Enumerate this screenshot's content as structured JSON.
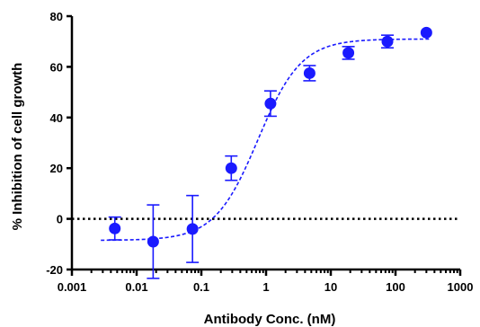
{
  "chart_data": {
    "type": "scatter",
    "title": "",
    "xlabel": "Antibody Conc. (nM)",
    "ylabel": "% Inhibition of cell growth",
    "x_scale": "log",
    "xlim": [
      0.001,
      1000
    ],
    "ylim": [
      -20,
      80
    ],
    "x_ticks": [
      0.001,
      0.01,
      0.1,
      1,
      10,
      100,
      1000
    ],
    "x_tick_labels": [
      "0.001",
      "0.01",
      "0.1",
      "1",
      "10",
      "100",
      "1000"
    ],
    "y_ticks": [
      -20,
      0,
      20,
      40,
      60,
      80
    ],
    "y_tick_labels": [
      "-20",
      "0",
      "20",
      "40",
      "60",
      "80"
    ],
    "grid": false,
    "legend": "none",
    "reference_line": {
      "y": 0,
      "style": "dotted",
      "color": "#000000"
    },
    "series": [
      {
        "color": "#1a1aff",
        "marker": "circle",
        "points": [
          {
            "x": 0.0046,
            "y": -3.8,
            "err": 4.5
          },
          {
            "x": 0.018,
            "y": -9.0,
            "err": 14.5
          },
          {
            "x": 0.073,
            "y": -4.0,
            "err": 13.2
          },
          {
            "x": 0.29,
            "y": 20.0,
            "err": 4.8
          },
          {
            "x": 1.17,
            "y": 45.5,
            "err": 5.0
          },
          {
            "x": 4.7,
            "y": 57.5,
            "err": 3.0
          },
          {
            "x": 18.7,
            "y": 65.5,
            "err": 2.5
          },
          {
            "x": 75,
            "y": 70.0,
            "err": 2.5
          },
          {
            "x": 300,
            "y": 73.5,
            "err": 0
          }
        ]
      }
    ],
    "fit_curve": {
      "model": "four-parameter logistic",
      "style": "dashed",
      "color": "#1a1aff",
      "bottom": -8.5,
      "top": 71,
      "ec50": 0.75,
      "hill": 1.3
    }
  }
}
